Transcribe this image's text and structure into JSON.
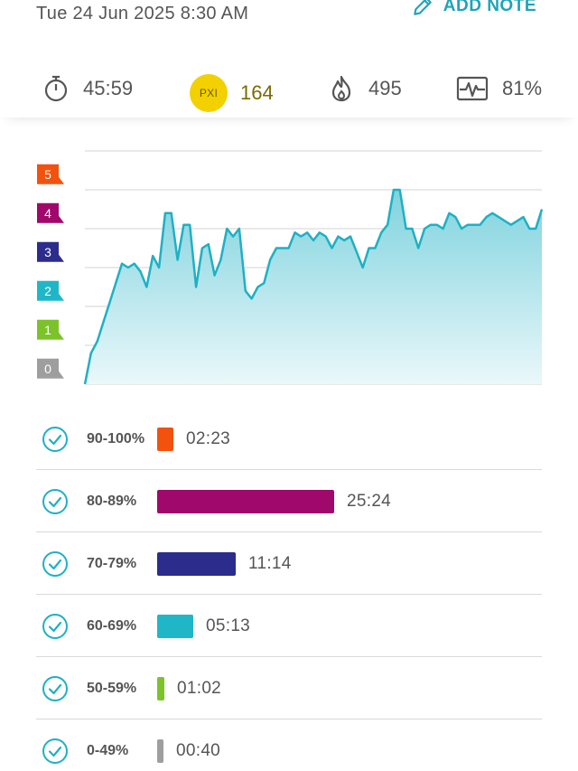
{
  "header": {
    "datetime": "Tue 24 Jun 2025 8:30 AM",
    "add_note_label": "ADD NOTE"
  },
  "stats": {
    "duration": "45:59",
    "pxi_badge": "PXI",
    "pxi_value": "164",
    "calories": "495",
    "effort_percent": "81%"
  },
  "chart_data": {
    "type": "area",
    "y_ticks": [
      "0",
      "1",
      "2",
      "3",
      "4",
      "5"
    ],
    "y_tick_colors": [
      "#9e9e9e",
      "#7cc32b",
      "#1fb7c7",
      "#2c2c8c",
      "#a0086c",
      "#f2520e"
    ],
    "ylim": [
      0,
      6
    ],
    "line_color": "#1fb0c4",
    "fill_top": "#7fd3de",
    "fill_bottom": "#eaf8fa",
    "values": [
      0.0,
      0.8,
      1.1,
      1.6,
      2.1,
      2.6,
      3.1,
      3.0,
      3.1,
      2.9,
      2.5,
      3.3,
      3.0,
      4.4,
      4.4,
      3.2,
      4.1,
      4.1,
      2.5,
      3.5,
      3.6,
      2.8,
      3.2,
      4.0,
      3.8,
      4.0,
      2.4,
      2.2,
      2.5,
      2.6,
      3.2,
      3.5,
      3.5,
      3.5,
      3.9,
      3.8,
      3.9,
      3.7,
      3.9,
      3.8,
      3.5,
      3.8,
      3.7,
      3.8,
      3.4,
      3.0,
      3.5,
      3.5,
      3.9,
      4.1,
      5.0,
      5.0,
      4.0,
      4.0,
      3.5,
      4.0,
      4.1,
      4.1,
      4.0,
      4.4,
      4.3,
      4.0,
      4.1,
      4.1,
      4.1,
      4.3,
      4.4,
      4.3,
      4.2,
      4.1,
      4.2,
      4.3,
      4.0,
      4.0,
      4.5
    ]
  },
  "zones": [
    {
      "label": "90-100%",
      "time": "02:23",
      "color": "#f2520e",
      "fraction": 0.052
    },
    {
      "label": "80-89%",
      "time": "25:24",
      "color": "#a0086c",
      "fraction": 0.552
    },
    {
      "label": "70-79%",
      "time": "11:14",
      "color": "#2c2c8c",
      "fraction": 0.244
    },
    {
      "label": "60-69%",
      "time": "05:13",
      "color": "#1fb7c7",
      "fraction": 0.113
    },
    {
      "label": "50-59%",
      "time": "01:02",
      "color": "#7cc32b",
      "fraction": 0.022
    },
    {
      "label": "0-49%",
      "time": "00:40",
      "color": "#9e9e9e",
      "fraction": 0.014
    }
  ]
}
